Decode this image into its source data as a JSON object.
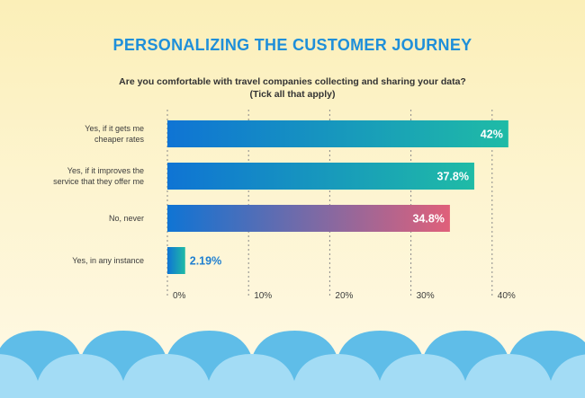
{
  "chart_data": {
    "type": "bar",
    "orientation": "horizontal",
    "title": "PERSONALIZING THE CUSTOMER JOURNEY",
    "subtitle": [
      "Are you comfortable with travel companies collecting and sharing your data?",
      "(Tick all that apply)"
    ],
    "categories": [
      [
        "Yes, if it gets me",
        "cheaper rates"
      ],
      [
        "Yes, if it improves the",
        "service that they offer me"
      ],
      [
        "No, never"
      ],
      [
        "Yes, in any instance"
      ]
    ],
    "values": [
      42,
      37.8,
      34.8,
      2.19
    ],
    "value_labels": [
      "42%",
      "37.8%",
      "34.8%",
      "2.19%"
    ],
    "xlim": [
      0,
      40
    ],
    "ticks": [
      0,
      10,
      20,
      30,
      40
    ],
    "tick_labels": [
      "0%",
      "10%",
      "20%",
      "30%",
      "40%"
    ],
    "grid": "dashed vertical",
    "colors": {
      "title": "#1f8fd9",
      "bar_start": "#0f74d4",
      "bar_end_teal": "#1fbba6",
      "bar_end_pink": "#e0607a",
      "small_value_label": "#1f7fd0",
      "waves_dark": "#5fbde8",
      "waves_light": "#a3dcf5"
    }
  }
}
